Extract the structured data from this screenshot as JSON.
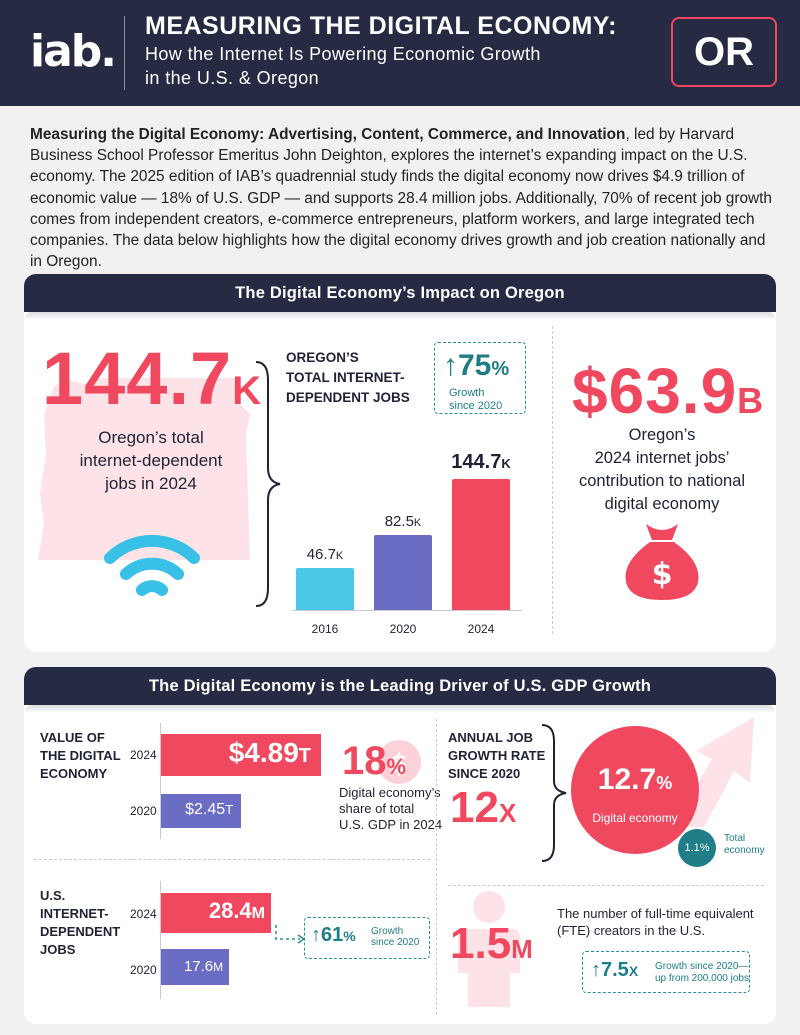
{
  "header": {
    "logo": "iab.",
    "title": "MEASURING THE DIGITAL ECONOMY:",
    "subtitle_line1": "How the Internet Is Powering Economic Growth",
    "subtitle_line2": "in the U.S. & Oregon",
    "state_code": "OR"
  },
  "intro": {
    "lead": "Measuring the Digital Economy: Advertising, Content, Commerce, and Innovation",
    "text": ", led by Harvard Business School Professor Emeritus John Deighton, explores the internet’s expanding impact on the U.S. economy. The 2025 edition of IAB’s quadrennial study finds the digital economy now drives $4.9 trillion of economic value — 18% of U.S. GDP — and supports 28.4 million jobs. Additionally, 70% of recent job growth comes from independent creators, e-commerce entrepreneurs, platform workers, and large integrated tech companies. The data below highlights how the digital economy drives growth and job creation nationally and in Oregon."
  },
  "panel1": {
    "title": "The Digital Economy’s Impact on Oregon",
    "big_number": "144.7",
    "big_unit": "K",
    "big_desc_line1": "Oregon’s total",
    "big_desc_line2": "internet-dependent",
    "big_desc_line3": "jobs in 2024",
    "chart_label_line1": "OREGON’S",
    "chart_label_line2": "TOTAL INTERNET-",
    "chart_label_line3": "DEPENDENT JOBS",
    "growth_value": "75",
    "growth_unit": "%",
    "growth_caption_line1": "Growth",
    "growth_caption_line2": "since 2020",
    "contrib_number": "$63.9",
    "contrib_unit": "B",
    "contrib_line1": "Oregon’s",
    "contrib_line2": "2024 internet jobs’",
    "contrib_line3": "contribution to national",
    "contrib_line4": "digital economy",
    "dollar_sign": "$"
  },
  "chart_data": {
    "type": "bar",
    "categories": [
      "2016",
      "2020",
      "2024"
    ],
    "values": [
      46.7,
      82.5,
      144.7
    ],
    "value_labels": [
      "46.7",
      "82.5",
      "144.7"
    ],
    "unit": "K",
    "colors": [
      "#4cc7e8",
      "#6b6cc4",
      "#f0485f"
    ],
    "ylim": [
      0,
      160
    ]
  },
  "panel2": {
    "title": "The Digital Economy is the Leading Driver of U.S. GDP Growth",
    "value_label_line1": "VALUE OF",
    "value_label_line2": "THE DIGITAL",
    "value_label_line3": "ECONOMY",
    "value_2024_year": "2024",
    "value_2024": "$4.89",
    "value_2024_unit": "T",
    "value_2020_year": "2020",
    "value_2020": "$2.45",
    "value_2020_unit": "T",
    "share_value": "18",
    "share_unit": "%",
    "share_desc_line1": "Digital economy’s",
    "share_desc_line2": "share of total",
    "share_desc_line3": "U.S. GDP in 2024",
    "jobs_label_line1": "U.S.",
    "jobs_label_line2": "INTERNET-",
    "jobs_label_line3": "DEPENDENT",
    "jobs_label_line4": "JOBS",
    "jobs_2024_year": "2024",
    "jobs_2024": "28.4",
    "jobs_2024_unit": "M",
    "jobs_2020_year": "2020",
    "jobs_2020": "17.6",
    "jobs_2020_unit": "M",
    "jobs_growth_value": "61",
    "jobs_growth_unit": "%",
    "jobs_growth_caption_line1": "Growth",
    "jobs_growth_caption_line2": "since 2020",
    "rate_label_line1": "ANNUAL JOB",
    "rate_label_line2": "GROWTH RATE",
    "rate_label_line3": "SINCE 2020",
    "rate_multiple": "12",
    "rate_multiple_unit": "X",
    "digital_rate": "12.7",
    "digital_rate_unit": "%",
    "digital_rate_label": "Digital economy",
    "total_rate": "1.1%",
    "total_rate_label_line1": "Total",
    "total_rate_label_line2": "economy",
    "creators_desc_line1": "The number of full-time equivalent",
    "creators_desc_line2": "(FTE) creators in the U.S.",
    "creators_value": "1.5",
    "creators_unit": "M",
    "creators_growth_value": "7.5",
    "creators_growth_unit": "X",
    "creators_growth_caption_line1": "Growth since 2020—",
    "creators_growth_caption_line2": "up from 200,000 jobs",
    "bar_colors": {
      "y2024": "#f0485f",
      "y2020": "#6b6cc4"
    },
    "bar_values": {
      "value_2024": 4.89,
      "value_2020": 2.45,
      "jobs_2024": 28.4,
      "jobs_2020": 17.6
    }
  },
  "icons": {
    "state_map": "oregon-map-icon",
    "wifi": "wifi-icon",
    "money_bag": "money-bag-icon",
    "arrow_up": "arrow-up-icon",
    "growth_arrow": "growth-arrow-icon",
    "person": "person-icon"
  }
}
